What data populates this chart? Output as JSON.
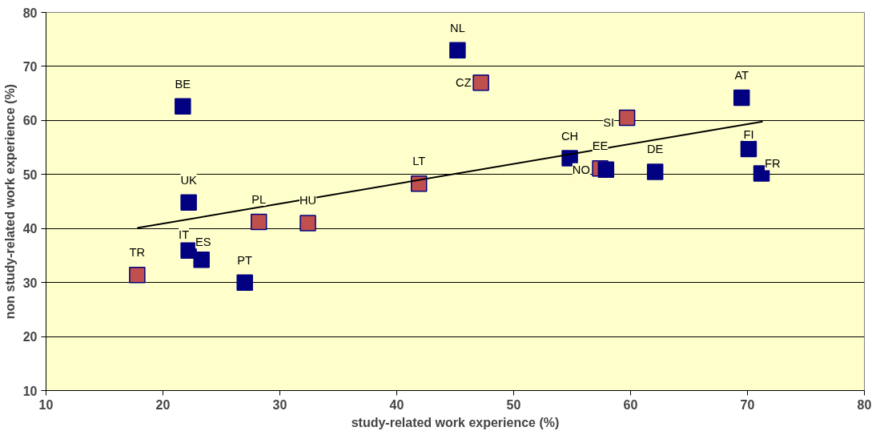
{
  "chart_data": {
    "type": "scatter",
    "xlabel": "study-related work experience (%)",
    "ylabel": "non study-related work experience (%)",
    "xlim": [
      10,
      80
    ],
    "ylim": [
      10,
      80
    ],
    "xticks": [
      10,
      20,
      30,
      40,
      50,
      60,
      70,
      80
    ],
    "yticks": [
      10,
      20,
      30,
      40,
      50,
      60,
      70,
      80
    ],
    "grid": "y",
    "marker": "square",
    "series": [
      {
        "color": "#000080",
        "x": [
          21.7,
          22.2,
          22.2,
          23.3,
          27.0,
          45.2,
          54.8,
          57.9,
          62.1,
          69.5,
          70.1,
          71.2
        ],
        "values": [
          62.6,
          44.8,
          35.9,
          34.2,
          30.0,
          73.0,
          53.0,
          50.9,
          50.5,
          64.2,
          54.7,
          50.2
        ]
      },
      {
        "color": "#c0504d",
        "x": [
          17.8,
          28.2,
          32.4,
          41.9,
          47.2,
          59.7,
          57.4
        ],
        "values": [
          31.4,
          41.2,
          41.0,
          48.3,
          67.0,
          60.5,
          51.1
        ]
      },
      {
        "type": "line",
        "color": "#000000",
        "marker": "none",
        "x": [
          17.8,
          71.3
        ],
        "values": [
          40.1,
          59.8
        ]
      }
    ],
    "annotations": [
      {
        "text": "BE",
        "x": 21.7,
        "y": 62.6
      },
      {
        "text": "UK",
        "x": 22.2,
        "y": 44.8
      },
      {
        "text": "IT",
        "x": 22.2,
        "y": 35.9
      },
      {
        "text": "ES",
        "x": 23.3,
        "y": 34.2
      },
      {
        "text": "PT",
        "x": 27.0,
        "y": 30.0
      },
      {
        "text": "NL",
        "x": 45.2,
        "y": 73.0
      },
      {
        "text": "CH",
        "x": 54.8,
        "y": 53.0
      },
      {
        "text": "NO",
        "x": 57.9,
        "y": 50.9
      },
      {
        "text": "DE",
        "x": 62.1,
        "y": 50.5
      },
      {
        "text": "AT",
        "x": 69.5,
        "y": 64.2
      },
      {
        "text": "FI",
        "x": 70.1,
        "y": 54.7
      },
      {
        "text": "FR",
        "x": 71.2,
        "y": 50.2
      },
      {
        "text": "TR",
        "x": 17.8,
        "y": 31.4
      },
      {
        "text": "PL",
        "x": 28.2,
        "y": 41.2
      },
      {
        "text": "HU",
        "x": 32.4,
        "y": 41.0
      },
      {
        "text": "LT",
        "x": 41.9,
        "y": 48.3
      },
      {
        "text": "CZ",
        "x": 47.2,
        "y": 67.0
      },
      {
        "text": "SI",
        "x": 59.7,
        "y": 60.5
      },
      {
        "text": "EE",
        "x": 57.4,
        "y": 51.1
      }
    ]
  }
}
